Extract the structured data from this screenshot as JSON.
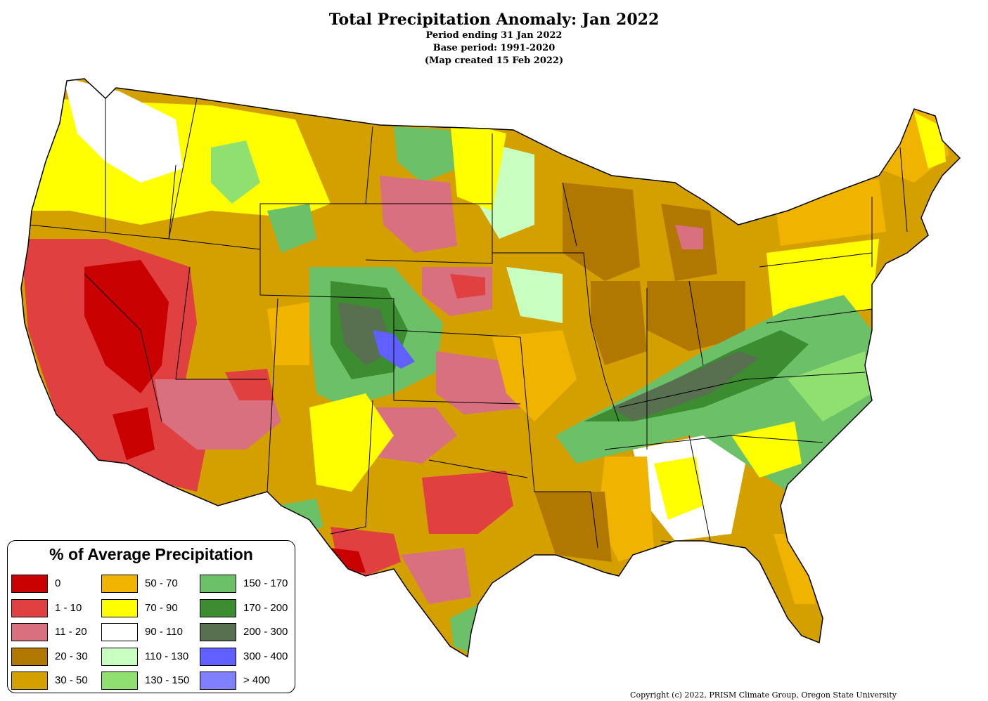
{
  "header": {
    "title": "Total Precipitation Anomaly: Jan 2022",
    "line1": "Period ending 31 Jan 2022",
    "line2": "Base period: 1991-2020",
    "line3": "(Map created 15 Feb 2022)"
  },
  "legend": {
    "title": "% of Average Precipitation",
    "items": [
      {
        "label": "0",
        "color": "#c80000"
      },
      {
        "label": "1 - 10",
        "color": "#e04040"
      },
      {
        "label": "11 - 20",
        "color": "#d87080"
      },
      {
        "label": "20 - 30",
        "color": "#b07800"
      },
      {
        "label": "30 - 50",
        "color": "#d4a000"
      },
      {
        "label": "50 - 70",
        "color": "#f0b400"
      },
      {
        "label": "70 - 90",
        "color": "#ffff00"
      },
      {
        "label": "90 - 110",
        "color": "#ffffff"
      },
      {
        "label": "110 - 130",
        "color": "#c8ffc0"
      },
      {
        "label": "130 - 150",
        "color": "#90e070"
      },
      {
        "label": "150 - 170",
        "color": "#6cc068"
      },
      {
        "label": "170 - 200",
        "color": "#3c8c30"
      },
      {
        "label": "200 - 300",
        "color": "#587050"
      },
      {
        "label": "300 - 400",
        "color": "#6060ff"
      },
      {
        "label": "> 400",
        "color": "#8080ff"
      }
    ]
  },
  "copyright": "Copyright (c) 2022, PRISM Climate Group, Oregon State University"
}
